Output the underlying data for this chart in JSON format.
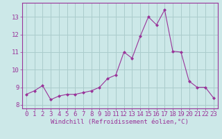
{
  "x": [
    0,
    1,
    2,
    3,
    4,
    5,
    6,
    7,
    8,
    9,
    10,
    11,
    12,
    13,
    14,
    15,
    16,
    17,
    18,
    19,
    20,
    21,
    22,
    23
  ],
  "y": [
    8.6,
    8.8,
    9.1,
    8.3,
    8.5,
    8.6,
    8.6,
    8.7,
    8.8,
    9.0,
    9.5,
    9.7,
    11.0,
    10.65,
    11.9,
    13.0,
    12.55,
    13.4,
    11.05,
    11.0,
    9.35,
    9.0,
    9.0,
    8.4
  ],
  "line_color": "#993399",
  "marker": "D",
  "marker_size": 2,
  "bg_color": "#cce8e8",
  "grid_color": "#aacccc",
  "xlabel": "Windchill (Refroidissement éolien,°C)",
  "xlabel_color": "#993399",
  "tick_color": "#993399",
  "ylim": [
    7.8,
    13.8
  ],
  "yticks": [
    8,
    9,
    10,
    11,
    12,
    13
  ],
  "xticks": [
    0,
    1,
    2,
    3,
    4,
    5,
    6,
    7,
    8,
    9,
    10,
    11,
    12,
    13,
    14,
    15,
    16,
    17,
    18,
    19,
    20,
    21,
    22,
    23
  ],
  "font_size": 6.5
}
